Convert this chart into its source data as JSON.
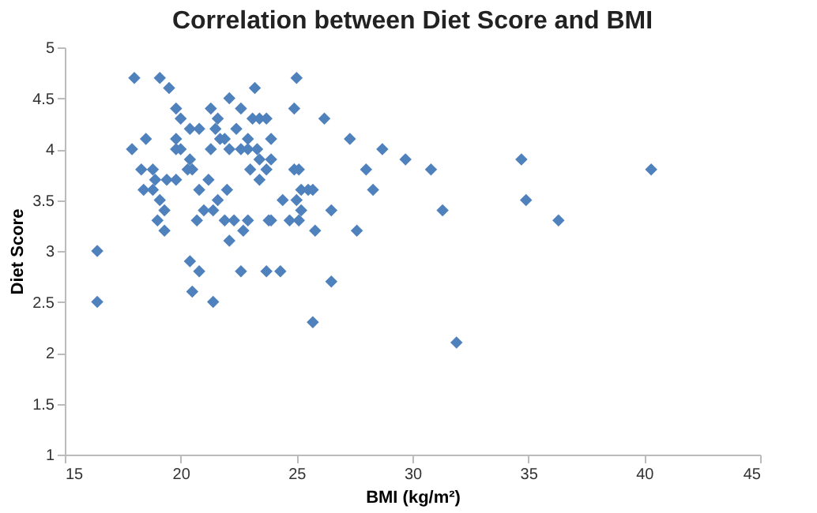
{
  "chart_data": {
    "type": "scatter",
    "title": "Correlation between Diet Score and BMI",
    "xlabel": "BMI (kg/m²)",
    "ylabel": "Diet Score",
    "xlim": [
      15,
      45
    ],
    "ylim": [
      1,
      5
    ],
    "xticks": [
      15,
      20,
      25,
      30,
      35,
      40,
      45
    ],
    "yticks": [
      1,
      1.5,
      2,
      2.5,
      3,
      3.5,
      4,
      4.5,
      5
    ],
    "grid": false,
    "marker": "diamond",
    "series": [
      {
        "color": "#4f81bd",
        "x": [
          16.4,
          16.4,
          18.0,
          19.1,
          19.5,
          19.8,
          20.0,
          21.3,
          21.6,
          22.1,
          22.6,
          23.2,
          23.1,
          23.4,
          23.7,
          25.0,
          24.9,
          17.9,
          18.5,
          19.8,
          19.8,
          20.0,
          20.4,
          20.8,
          21.5,
          21.7,
          21.9,
          21.3,
          22.1,
          22.6,
          22.9,
          23.3,
          22.4,
          22.9,
          23.9,
          23.4,
          23.9,
          18.3,
          18.8,
          18.9,
          19.4,
          19.8,
          20.3,
          20.5,
          20.4,
          21.2,
          23.0,
          23.4,
          23.7,
          24.9,
          25.1,
          18.4,
          18.8,
          20.8,
          22.0,
          19.1,
          21.6,
          24.4,
          25.0,
          19.3,
          21.0,
          21.4,
          25.2,
          25.5,
          25.2,
          19.0,
          20.7,
          21.9,
          22.3,
          22.9,
          23.8,
          23.9,
          24.7,
          25.1,
          19.3,
          22.7,
          22.1,
          20.4,
          20.8,
          22.6,
          23.7,
          24.3,
          20.5,
          21.4,
          25.7,
          26.2,
          27.3,
          28.7,
          29.7,
          30.8,
          34.7,
          34.9,
          25.7,
          28.0,
          28.3,
          26.5,
          31.3,
          25.8,
          27.6,
          26.5,
          31.9,
          40.3,
          36.3
        ],
        "values": [
          3.0,
          2.5,
          4.7,
          4.7,
          4.6,
          4.4,
          4.3,
          4.4,
          4.3,
          4.5,
          4.4,
          4.6,
          4.3,
          4.3,
          4.3,
          4.7,
          4.4,
          4.0,
          4.1,
          4.1,
          4.0,
          4.0,
          4.2,
          4.2,
          4.2,
          4.1,
          4.1,
          4.0,
          4.0,
          4.0,
          4.0,
          4.0,
          4.2,
          4.1,
          4.1,
          3.9,
          3.9,
          3.8,
          3.8,
          3.7,
          3.7,
          3.7,
          3.8,
          3.8,
          3.9,
          3.7,
          3.8,
          3.7,
          3.8,
          3.8,
          3.8,
          3.6,
          3.6,
          3.6,
          3.6,
          3.5,
          3.5,
          3.5,
          3.5,
          3.4,
          3.4,
          3.4,
          3.6,
          3.6,
          3.4,
          3.3,
          3.3,
          3.3,
          3.3,
          3.3,
          3.3,
          3.3,
          3.3,
          3.3,
          3.2,
          3.2,
          3.1,
          2.9,
          2.8,
          2.8,
          2.8,
          2.8,
          2.6,
          2.5,
          2.3,
          4.3,
          4.1,
          4.0,
          3.9,
          3.8,
          3.9,
          3.5,
          3.6,
          3.8,
          3.6,
          3.4,
          3.4,
          3.2,
          3.2,
          2.7,
          2.1,
          3.8,
          3.3
        ]
      }
    ]
  }
}
